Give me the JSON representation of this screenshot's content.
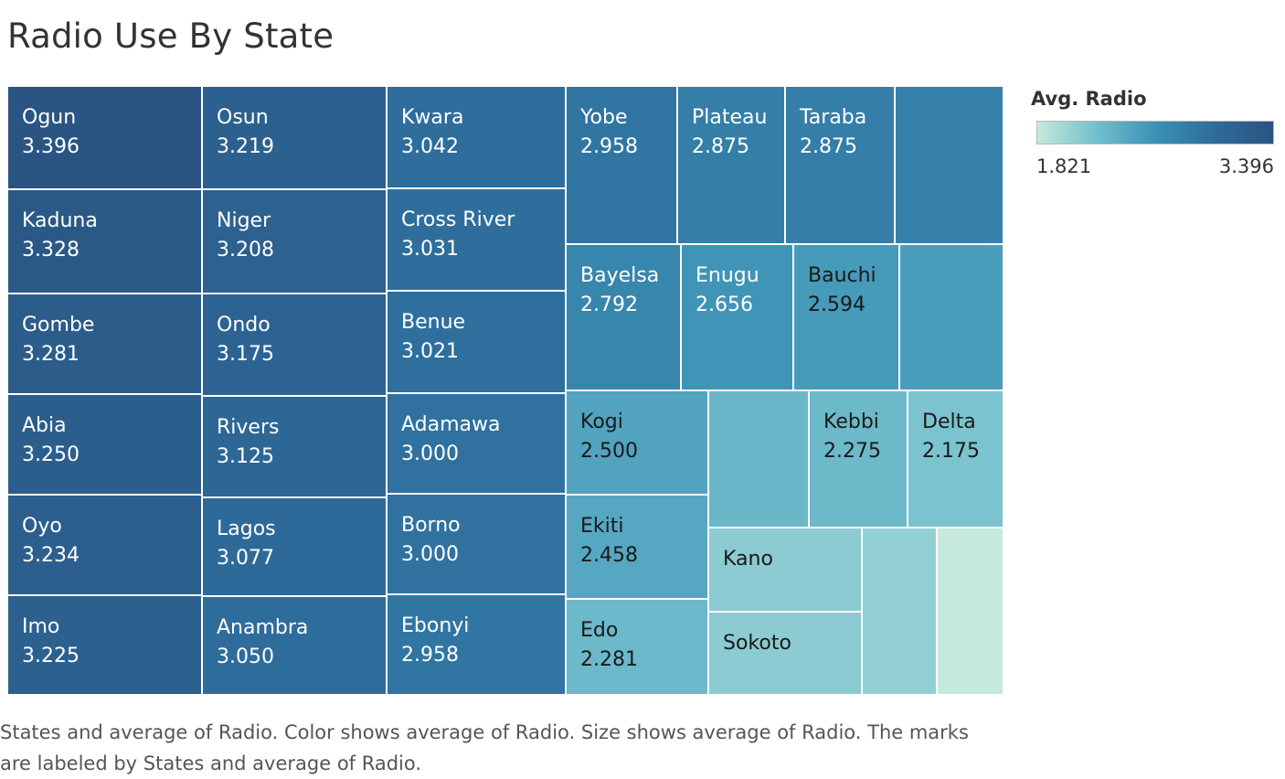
{
  "title": "Radio Use By State",
  "legend": {
    "title": "Avg. Radio",
    "min_label": "1.821",
    "max_label": "3.396",
    "color_low": "#c5e9dc",
    "color_high": "#2a5482"
  },
  "caption": "States and average of Radio.  Color shows average of Radio.  Size shows average of Radio.  The marks are labeled by States and average of Radio.",
  "chart_data": {
    "type": "treemap",
    "color_range": [
      1.821,
      3.396
    ],
    "marks": [
      {
        "name": "Ogun",
        "value": 3.396,
        "label": "3.396"
      },
      {
        "name": "Kaduna",
        "value": 3.328,
        "label": "3.328"
      },
      {
        "name": "Gombe",
        "value": 3.281,
        "label": "3.281"
      },
      {
        "name": "Abia",
        "value": 3.25,
        "label": "3.250"
      },
      {
        "name": "Oyo",
        "value": 3.234,
        "label": "3.234"
      },
      {
        "name": "Imo",
        "value": 3.225,
        "label": "3.225"
      },
      {
        "name": "Osun",
        "value": 3.219,
        "label": "3.219"
      },
      {
        "name": "Niger",
        "value": 3.208,
        "label": "3.208"
      },
      {
        "name": "Ondo",
        "value": 3.175,
        "label": "3.175"
      },
      {
        "name": "Rivers",
        "value": 3.125,
        "label": "3.125"
      },
      {
        "name": "Lagos",
        "value": 3.077,
        "label": "3.077"
      },
      {
        "name": "Anambra",
        "value": 3.05,
        "label": "3.050"
      },
      {
        "name": "Kwara",
        "value": 3.042,
        "label": "3.042"
      },
      {
        "name": "Cross River",
        "value": 3.031,
        "label": "3.031"
      },
      {
        "name": "Benue",
        "value": 3.021,
        "label": "3.021"
      },
      {
        "name": "Adamawa",
        "value": 3.0,
        "label": "3.000"
      },
      {
        "name": "Borno",
        "value": 3.0,
        "label": "3.000"
      },
      {
        "name": "Ebonyi",
        "value": 2.958,
        "label": "2.958"
      },
      {
        "name": "Yobe",
        "value": 2.958,
        "label": "2.958"
      },
      {
        "name": "Plateau",
        "value": 2.875,
        "label": "2.875"
      },
      {
        "name": "Taraba",
        "value": 2.875,
        "label": "2.875"
      },
      {
        "name": "",
        "value": 2.84,
        "label": ""
      },
      {
        "name": "Bayelsa",
        "value": 2.792,
        "label": "2.792"
      },
      {
        "name": "Enugu",
        "value": 2.656,
        "label": "2.656"
      },
      {
        "name": "Bauchi",
        "value": 2.594,
        "label": "2.594"
      },
      {
        "name": "",
        "value": 2.56,
        "label": ""
      },
      {
        "name": "Kogi",
        "value": 2.5,
        "label": "2.500"
      },
      {
        "name": "Ekiti",
        "value": 2.458,
        "label": "2.458"
      },
      {
        "name": "Edo",
        "value": 2.281,
        "label": "2.281"
      },
      {
        "name": "",
        "value": 2.3,
        "label": ""
      },
      {
        "name": "Kebbi",
        "value": 2.275,
        "label": "2.275"
      },
      {
        "name": "Delta",
        "value": 2.175,
        "label": "2.175"
      },
      {
        "name": "Kano",
        "value": 2.1,
        "label": ""
      },
      {
        "name": "Sokoto",
        "value": 2.1,
        "label": ""
      },
      {
        "name": "",
        "value": 2.06,
        "label": ""
      },
      {
        "name": "",
        "value": 1.821,
        "label": ""
      }
    ]
  }
}
